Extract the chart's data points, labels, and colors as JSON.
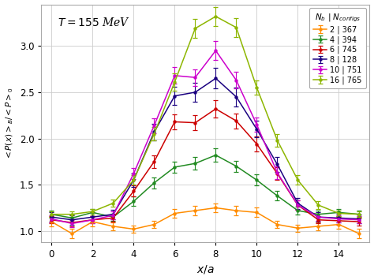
{
  "title": "$T = 155$ MeV",
  "xlabel": "$x/a$",
  "ylabel": "$ < P(x) >_B /  < P >_0$",
  "xlim": [
    -0.5,
    15.5
  ],
  "ylim": [
    0.88,
    3.45
  ],
  "yticks": [
    1.0,
    1.5,
    2.0,
    2.5,
    3.0
  ],
  "xticks": [
    0,
    2,
    4,
    6,
    8,
    10,
    12,
    14
  ],
  "series": [
    {
      "label": "2 | 367",
      "color": "#FF8C00",
      "x": [
        0,
        1,
        2,
        3,
        4,
        5,
        6,
        7,
        8,
        9,
        10,
        11,
        12,
        13,
        14,
        15
      ],
      "y": [
        1.1,
        0.97,
        1.1,
        1.05,
        1.02,
        1.07,
        1.19,
        1.22,
        1.25,
        1.22,
        1.2,
        1.07,
        1.03,
        1.05,
        1.07,
        0.97
      ],
      "yerr": [
        0.05,
        0.05,
        0.05,
        0.04,
        0.04,
        0.04,
        0.05,
        0.05,
        0.05,
        0.05,
        0.05,
        0.04,
        0.04,
        0.04,
        0.05,
        0.05
      ]
    },
    {
      "label": "4 | 394",
      "color": "#228B22",
      "x": [
        0,
        1,
        2,
        3,
        4,
        5,
        6,
        7,
        8,
        9,
        10,
        11,
        12,
        13,
        14,
        15
      ],
      "y": [
        1.18,
        1.14,
        1.2,
        1.15,
        1.32,
        1.52,
        1.69,
        1.73,
        1.82,
        1.7,
        1.55,
        1.38,
        1.22,
        1.18,
        1.2,
        1.18
      ],
      "yerr": [
        0.04,
        0.04,
        0.04,
        0.04,
        0.05,
        0.06,
        0.06,
        0.07,
        0.07,
        0.06,
        0.06,
        0.05,
        0.04,
        0.04,
        0.04,
        0.04
      ]
    },
    {
      "label": "6 | 745",
      "color": "#CC0000",
      "x": [
        0,
        1,
        2,
        3,
        4,
        5,
        6,
        7,
        8,
        9,
        10,
        11,
        12,
        13,
        14,
        15
      ],
      "y": [
        1.12,
        1.09,
        1.12,
        1.14,
        1.43,
        1.75,
        2.18,
        2.17,
        2.32,
        2.19,
        1.94,
        1.62,
        1.28,
        1.12,
        1.11,
        1.1
      ],
      "yerr": [
        0.04,
        0.04,
        0.04,
        0.04,
        0.06,
        0.07,
        0.08,
        0.08,
        0.09,
        0.08,
        0.08,
        0.07,
        0.05,
        0.04,
        0.04,
        0.04
      ]
    },
    {
      "label": "8 | 128",
      "color": "#1a0080",
      "x": [
        0,
        1,
        2,
        3,
        4,
        5,
        6,
        7,
        8,
        9,
        10,
        11,
        12,
        13,
        14,
        15
      ],
      "y": [
        1.15,
        1.12,
        1.15,
        1.18,
        1.55,
        2.07,
        2.46,
        2.5,
        2.65,
        2.45,
        2.1,
        1.72,
        1.3,
        1.15,
        1.14,
        1.13
      ],
      "yerr": [
        0.05,
        0.05,
        0.05,
        0.05,
        0.07,
        0.09,
        0.1,
        0.1,
        0.11,
        0.1,
        0.09,
        0.08,
        0.06,
        0.05,
        0.05,
        0.05
      ]
    },
    {
      "label": "10 | 751",
      "color": "#CC00CC",
      "x": [
        0,
        1,
        2,
        3,
        4,
        5,
        6,
        7,
        8,
        9,
        10,
        11,
        12,
        13,
        14,
        15
      ],
      "y": [
        1.13,
        1.08,
        1.12,
        1.17,
        1.62,
        2.14,
        2.68,
        2.66,
        2.95,
        2.63,
        2.15,
        1.63,
        1.28,
        1.15,
        1.13,
        1.12
      ],
      "yerr": [
        0.04,
        0.04,
        0.04,
        0.04,
        0.06,
        0.08,
        0.09,
        0.09,
        0.1,
        0.09,
        0.08,
        0.07,
        0.05,
        0.04,
        0.04,
        0.04
      ]
    },
    {
      "label": "16 | 765",
      "color": "#8DB600",
      "x": [
        0,
        1,
        2,
        3,
        4,
        5,
        6,
        7,
        8,
        9,
        10,
        11,
        12,
        13,
        14,
        15
      ],
      "y": [
        1.18,
        1.18,
        1.21,
        1.3,
        1.55,
        2.05,
        2.61,
        3.19,
        3.32,
        3.2,
        2.55,
        1.98,
        1.55,
        1.28,
        1.19,
        1.18
      ],
      "yerr": [
        0.03,
        0.03,
        0.03,
        0.04,
        0.05,
        0.07,
        0.09,
        0.1,
        0.1,
        0.1,
        0.08,
        0.07,
        0.05,
        0.04,
        0.03,
        0.03
      ]
    }
  ],
  "legend_title": "$N_b\\ |\\ N_{configs}$",
  "fig_width": 4.74,
  "fig_height": 3.55,
  "dpi": 100
}
